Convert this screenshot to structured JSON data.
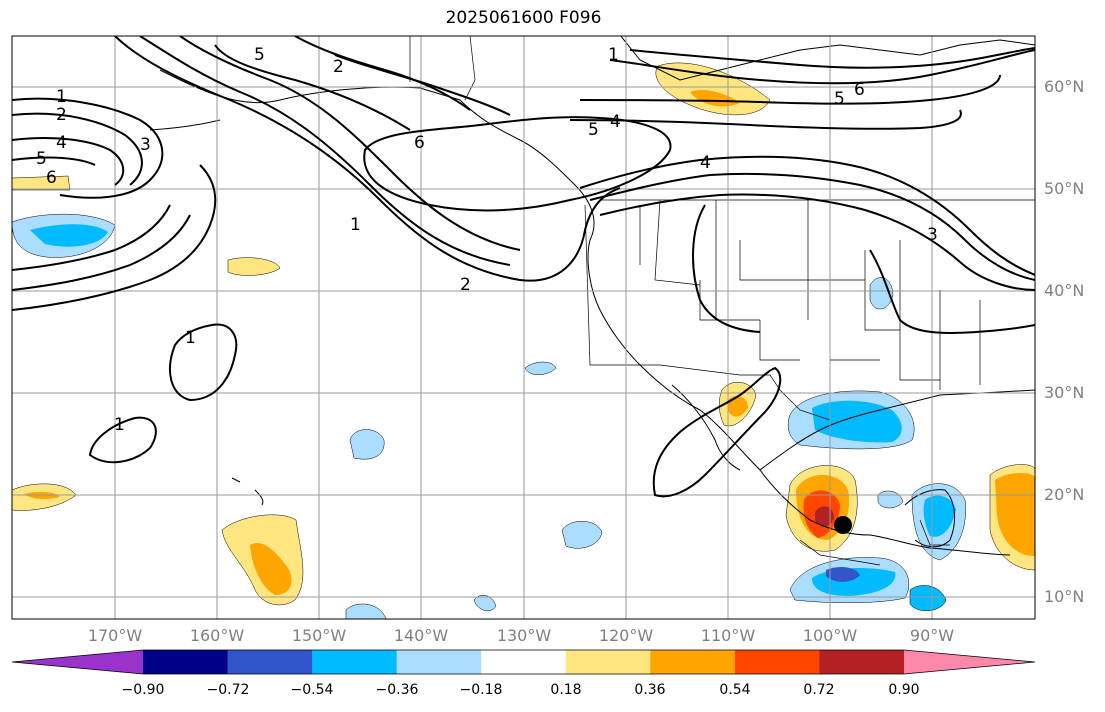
{
  "title": "2025061600 F096",
  "lat_labels": [
    "60°N",
    "50°N",
    "40°N",
    "30°N",
    "20°N",
    "10°N"
  ],
  "lon_labels": [
    "170°W",
    "160°W",
    "150°W",
    "140°W",
    "130°W",
    "120°W",
    "110°W",
    "100°W",
    "90°W"
  ],
  "colorbar": {
    "colors": [
      "#9933cc",
      "#000088",
      "#3355cc",
      "#00bbff",
      "#aaddff",
      "#ffffff",
      "#ffe680",
      "#ffa500",
      "#ff4500",
      "#b22222",
      "#ff88aa"
    ],
    "tick_labels": [
      "−0.90",
      "−0.72",
      "−0.54",
      "−0.36",
      "−0.18",
      "0.18",
      "0.36",
      "0.54",
      "0.72",
      "0.90"
    ]
  },
  "contour_labels": [
    "1",
    "2",
    "4",
    "5",
    "6",
    "3",
    "5",
    "2",
    "6",
    "1",
    "2",
    "5",
    "4",
    "5",
    "6",
    "4",
    "3",
    "1",
    "1",
    "1"
  ],
  "colors": {
    "contour": "#000000",
    "grid": "#999999",
    "coast": "#000000",
    "marker": "#000000"
  }
}
